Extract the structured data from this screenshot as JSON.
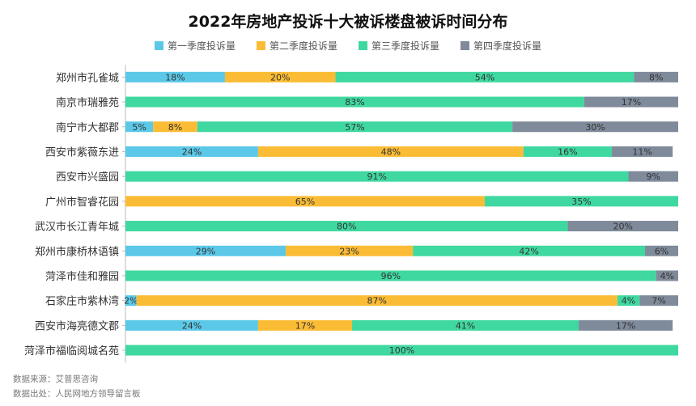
{
  "chart_data": {
    "type": "bar",
    "stacked": true,
    "orientation": "horizontal",
    "title": "2022年房地产投诉十大被诉楼盘被诉时间分布",
    "categories": [
      "郑州市孔雀城",
      "南京市瑞雅苑",
      "南宁市大都郡",
      "西安市紫薇东进",
      "西安市兴盛园",
      "广州市智睿花园",
      "武汉市长江青年城",
      "郑州市康桥林语镇",
      "菏泽市佳和雅园",
      "石家庄市紫林湾",
      "西安市海亮德文郡",
      "菏泽市福临阅城名苑"
    ],
    "series": [
      {
        "name": "第一季度投诉量",
        "color": "#5bc8e8",
        "values": [
          18,
          0,
          5,
          24,
          0,
          0,
          0,
          29,
          0,
          2,
          24,
          0
        ]
      },
      {
        "name": "第二季度投诉量",
        "color": "#fbbc35",
        "values": [
          20,
          0,
          8,
          48,
          0,
          65,
          0,
          23,
          0,
          87,
          17,
          0
        ]
      },
      {
        "name": "第三季度投诉量",
        "color": "#3fd8a0",
        "values": [
          54,
          83,
          57,
          16,
          91,
          35,
          80,
          42,
          96,
          4,
          41,
          100
        ]
      },
      {
        "name": "第四季度投诉量",
        "color": "#7f8a9b",
        "values": [
          8,
          17,
          30,
          11,
          9,
          0,
          20,
          6,
          4,
          7,
          17,
          0
        ]
      }
    ],
    "value_suffix": "%",
    "xlim": [
      0,
      100
    ],
    "legend_position": "top"
  },
  "footnotes": {
    "source": "数据来源：艾普思咨询",
    "origin": "数据出处：人民网地方领导留言板"
  },
  "watermark_text": "艾普思"
}
